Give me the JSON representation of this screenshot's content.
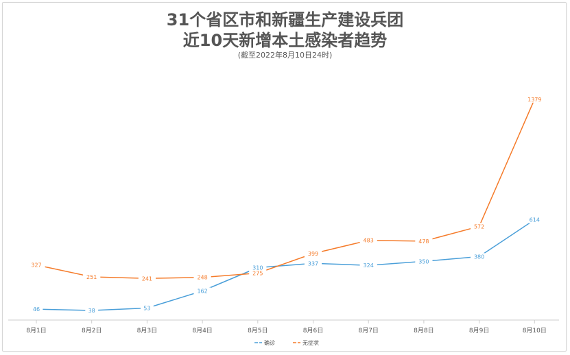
{
  "chart_data": {
    "type": "line",
    "title_line1_prefix": "31",
    "title_line1_rest": "个省区市和新疆生产建设兵团",
    "title_line2_a": "近",
    "title_line2_b": "10",
    "title_line2_c": "天新增本土感染者趋势",
    "subtitle": "(截至2022年8月10日24时)",
    "categories": [
      "8月1日",
      "8月2日",
      "8月3日",
      "8月4日",
      "8月5日",
      "8月6日",
      "8月7日",
      "8月8日",
      "8月9日",
      "8月10日"
    ],
    "series": [
      {
        "name": "确诊",
        "color": "#4a9fd9",
        "values": [
          46,
          38,
          53,
          162,
          310,
          337,
          324,
          350,
          380,
          614
        ]
      },
      {
        "name": "无症状",
        "color": "#f57b2a",
        "values": [
          327,
          251,
          241,
          248,
          275,
          399,
          483,
          478,
          572,
          1379
        ]
      }
    ],
    "legend_position": "bottom-center",
    "grid": false
  }
}
